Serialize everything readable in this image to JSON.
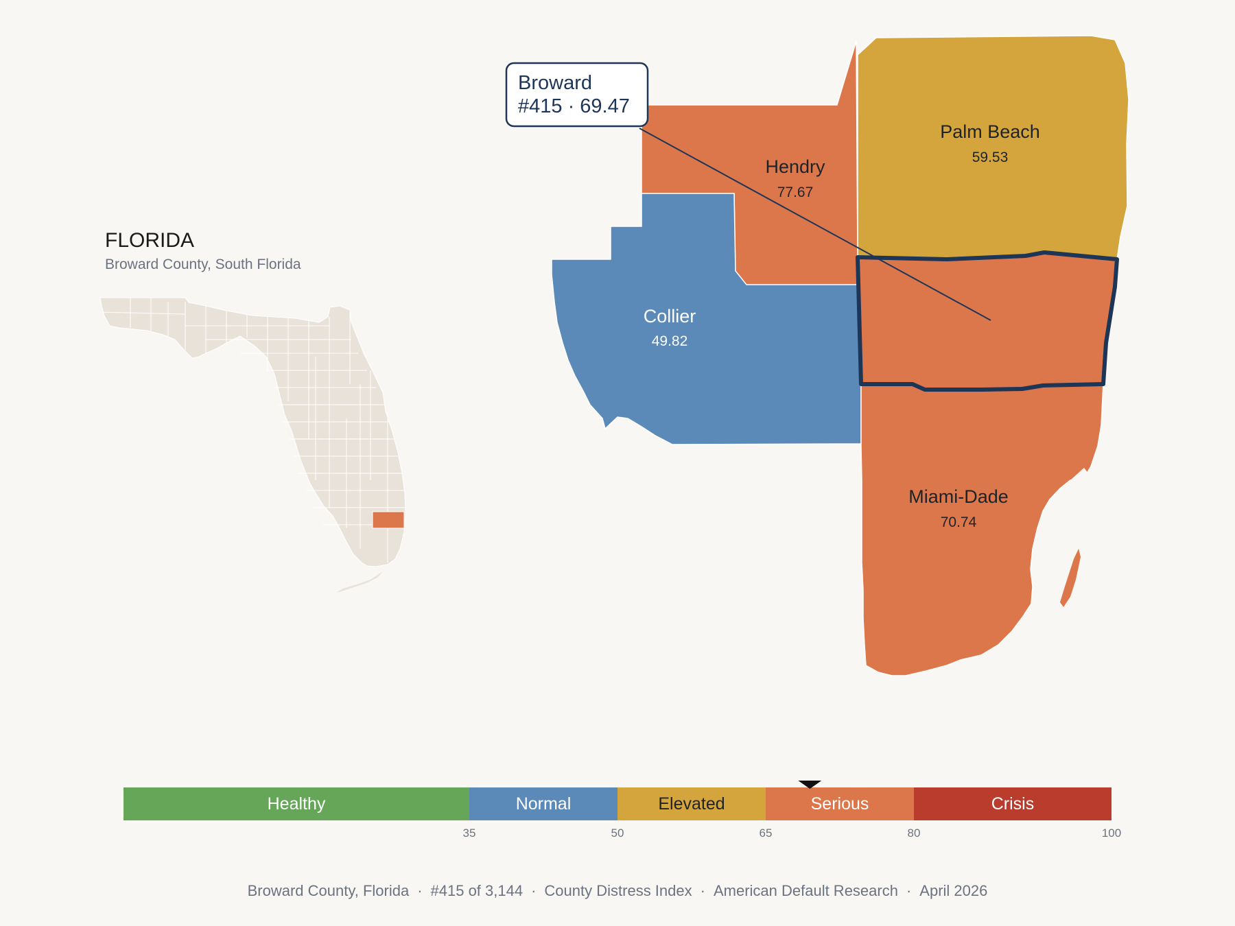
{
  "state": {
    "title": "FLORIDA",
    "subtitle": "Broward County, South Florida"
  },
  "colors": {
    "background": "#f9f7f3",
    "inset_state": "#e8e2d8",
    "healthy": "#66a658",
    "normal": "#5b8ab9",
    "elevated": "#d3a53c",
    "serious": "#dc774b",
    "crisis": "#b93c2d",
    "highlight_outline": "#1d3557"
  },
  "callout": {
    "county": "Broward",
    "rank_score": "#415 · 69.47"
  },
  "counties": [
    {
      "id": "hendry",
      "name": "Hendry",
      "score": "77.67",
      "category": "Serious"
    },
    {
      "id": "palm-beach",
      "name": "Palm Beach",
      "score": "59.53",
      "category": "Elevated"
    },
    {
      "id": "collier",
      "name": "Collier",
      "score": "49.82",
      "category": "Normal"
    },
    {
      "id": "broward",
      "name": "Broward",
      "score": "69.47",
      "category": "Serious",
      "highlighted": true
    },
    {
      "id": "miami-dade",
      "name": "Miami-Dade",
      "score": "70.74",
      "category": "Serious"
    }
  ],
  "legend": {
    "scale_min": 0,
    "scale_max": 100,
    "marker_value": 69.47,
    "bands": [
      {
        "label": "Healthy",
        "from": 0,
        "to": 35,
        "color": "#66a658",
        "text_color": "#ffffff"
      },
      {
        "label": "Normal",
        "from": 35,
        "to": 50,
        "color": "#5b8ab9",
        "text_color": "#ffffff"
      },
      {
        "label": "Elevated",
        "from": 50,
        "to": 65,
        "color": "#d3a53c",
        "text_color": "#1f2328"
      },
      {
        "label": "Serious",
        "from": 65,
        "to": 80,
        "color": "#dc774b",
        "text_color": "#ffffff"
      },
      {
        "label": "Crisis",
        "from": 80,
        "to": 100,
        "color": "#b93c2d",
        "text_color": "#ffffff"
      }
    ],
    "ticks": [
      "35",
      "50",
      "65",
      "80",
      "100"
    ]
  },
  "footer": {
    "county_state": "Broward County, Florida",
    "rank": "#415 of 3,144",
    "index_name": "County Distress Index",
    "source": "American Default Research",
    "date": "April 2026"
  }
}
